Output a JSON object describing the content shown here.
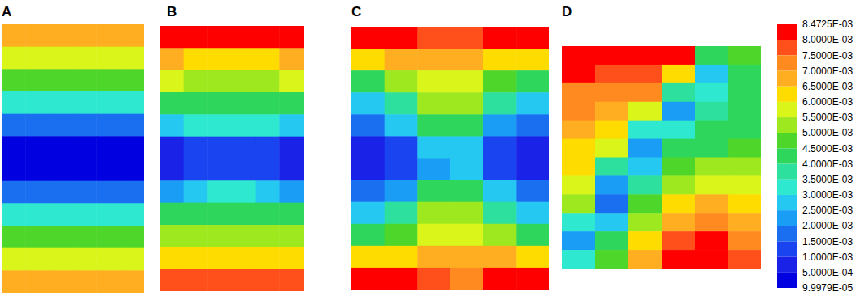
{
  "chart_data": {
    "type": "contour",
    "panels": [
      {
        "label": "A",
        "cells": [
          [
            0.0068,
            0.0068,
            0.0068,
            0.0068,
            0.0068,
            0.0068
          ],
          [
            0.0056,
            0.0056,
            0.0056,
            0.0056,
            0.0056,
            0.0056
          ],
          [
            0.0045,
            0.0045,
            0.0045,
            0.0045,
            0.0045,
            0.0045
          ],
          [
            0.003,
            0.003,
            0.003,
            0.003,
            0.003,
            0.003
          ],
          [
            0.0018,
            0.0018,
            0.0018,
            0.0018,
            0.0018,
            0.0018
          ],
          [
            0.0004,
            0.0004,
            0.0004,
            0.0004,
            0.0004,
            0.0004
          ],
          [
            0.0004,
            0.0004,
            0.0004,
            0.0004,
            0.0004,
            0.0004
          ],
          [
            0.0018,
            0.0018,
            0.0018,
            0.0018,
            0.0018,
            0.0018
          ],
          [
            0.003,
            0.003,
            0.003,
            0.003,
            0.003,
            0.003
          ],
          [
            0.0045,
            0.0045,
            0.0045,
            0.0045,
            0.0045,
            0.0045
          ],
          [
            0.0056,
            0.0056,
            0.0056,
            0.0056,
            0.0056,
            0.0056
          ],
          [
            0.0068,
            0.0068,
            0.0068,
            0.0068,
            0.0068,
            0.0068
          ]
        ]
      },
      {
        "label": "B",
        "cells": [
          [
            0.0082,
            0.0082,
            0.0082,
            0.0082,
            0.0082,
            0.0082
          ],
          [
            0.0066,
            0.0064,
            0.0062,
            0.0062,
            0.0064,
            0.0066
          ],
          [
            0.0055,
            0.0052,
            0.005,
            0.005,
            0.0052,
            0.0055
          ],
          [
            0.0044,
            0.0042,
            0.004,
            0.004,
            0.0042,
            0.0044
          ],
          [
            0.0026,
            0.003,
            0.0032,
            0.0032,
            0.003,
            0.0026
          ],
          [
            0.0006,
            0.001,
            0.0014,
            0.0014,
            0.001,
            0.0006
          ],
          [
            0.0006,
            0.001,
            0.0014,
            0.0014,
            0.001,
            0.0006
          ],
          [
            0.0024,
            0.0028,
            0.003,
            0.003,
            0.0028,
            0.0024
          ],
          [
            0.004,
            0.004,
            0.0042,
            0.0042,
            0.004,
            0.004
          ],
          [
            0.005,
            0.005,
            0.0052,
            0.0052,
            0.005,
            0.005
          ],
          [
            0.0062,
            0.0062,
            0.006,
            0.006,
            0.0062,
            0.0062
          ],
          [
            0.0078,
            0.0078,
            0.0076,
            0.0076,
            0.0078,
            0.0078
          ]
        ]
      },
      {
        "label": "C",
        "cells": [
          [
            0.0082,
            0.008,
            0.0075,
            0.0075,
            0.008,
            0.0082
          ],
          [
            0.0062,
            0.0066,
            0.0068,
            0.0066,
            0.0062,
            0.006
          ],
          [
            0.004,
            0.005,
            0.0058,
            0.0056,
            0.0048,
            0.004
          ],
          [
            0.0026,
            0.0038,
            0.005,
            0.005,
            0.0036,
            0.0028
          ],
          [
            0.0018,
            0.0026,
            0.0042,
            0.004,
            0.0024,
            0.0016
          ],
          [
            0.0008,
            0.0012,
            0.0026,
            0.0026,
            0.001,
            0.0006
          ],
          [
            0.0006,
            0.001,
            0.0024,
            0.0026,
            0.001,
            0.0006
          ],
          [
            0.0016,
            0.0024,
            0.004,
            0.0042,
            0.0026,
            0.0018
          ],
          [
            0.0026,
            0.0036,
            0.005,
            0.0052,
            0.0038,
            0.0028
          ],
          [
            0.004,
            0.0048,
            0.0056,
            0.0058,
            0.005,
            0.0042
          ],
          [
            0.006,
            0.0064,
            0.0066,
            0.0068,
            0.0066,
            0.0062
          ],
          [
            0.0082,
            0.008,
            0.0076,
            0.0074,
            0.008,
            0.0084
          ]
        ]
      },
      {
        "label": "D",
        "cells": [
          [
            0.0084,
            0.0084,
            0.0082,
            0.008,
            0.004,
            0.0045
          ],
          [
            0.008,
            0.0078,
            0.0076,
            0.006,
            0.0025,
            0.0042
          ],
          [
            0.0074,
            0.0072,
            0.007,
            0.0035,
            0.003,
            0.004
          ],
          [
            0.007,
            0.0068,
            0.0055,
            0.0022,
            0.0035,
            0.004
          ],
          [
            0.0066,
            0.0064,
            0.003,
            0.003,
            0.004,
            0.0042
          ],
          [
            0.0062,
            0.0058,
            0.002,
            0.004,
            0.0044,
            0.0046
          ],
          [
            0.006,
            0.0035,
            0.0025,
            0.0045,
            0.005,
            0.0052
          ],
          [
            0.0058,
            0.0022,
            0.0035,
            0.0052,
            0.0058,
            0.0056
          ],
          [
            0.005,
            0.0018,
            0.0045,
            0.006,
            0.0065,
            0.006
          ],
          [
            0.003,
            0.0025,
            0.005,
            0.0068,
            0.0072,
            0.0066
          ],
          [
            0.002,
            0.004,
            0.006,
            0.0076,
            0.008,
            0.007
          ],
          [
            0.003,
            0.0048,
            0.0068,
            0.008,
            0.0082,
            0.0075
          ]
        ]
      }
    ],
    "colorbar": {
      "range": [
        9.9979e-05,
        0.0084725
      ],
      "ticks": [
        {
          "value": 0.0084725,
          "label": "8.4725E-03"
        },
        {
          "value": 0.008,
          "label": "8.0000E-03"
        },
        {
          "value": 0.0075,
          "label": "7.5000E-03"
        },
        {
          "value": 0.007,
          "label": "7.0000E-03"
        },
        {
          "value": 0.0065,
          "label": "6.5000E-03"
        },
        {
          "value": 0.006,
          "label": "6.0000E-03"
        },
        {
          "value": 0.0055,
          "label": "5.5000E-03"
        },
        {
          "value": 0.005,
          "label": "5.0000E-03"
        },
        {
          "value": 0.0045,
          "label": "4.5000E-03"
        },
        {
          "value": 0.004,
          "label": "4.0000E-03"
        },
        {
          "value": 0.0035,
          "label": "3.5000E-03"
        },
        {
          "value": 0.003,
          "label": "3.0000E-03"
        },
        {
          "value": 0.0025,
          "label": "2.5000E-03"
        },
        {
          "value": 0.002,
          "label": "2.0000E-03"
        },
        {
          "value": 0.0015,
          "label": "1.5000E-03"
        },
        {
          "value": 0.001,
          "label": "1.0000E-03"
        },
        {
          "value": 0.0005,
          "label": "5.0000E-04"
        },
        {
          "value": 9.9979e-05,
          "label": "9.9979E-05"
        }
      ],
      "colors": [
        "#ff0000",
        "#ff4f1a",
        "#ff8a1f",
        "#ffae21",
        "#ffdc00",
        "#d9f51a",
        "#9ee81f",
        "#4fd62b",
        "#2ed65c",
        "#2ee09e",
        "#2ee8d0",
        "#24c8f0",
        "#1a9ef5",
        "#1a6ef0",
        "#1a44f0",
        "#1a22e8",
        "#0000e0"
      ]
    }
  }
}
